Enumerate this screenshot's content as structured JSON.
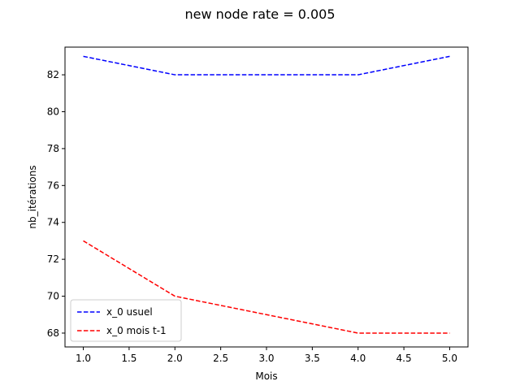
{
  "chart_data": {
    "type": "line",
    "title": "new node rate = 0.005",
    "xlabel": "Mois",
    "ylabel": "nb_itérations",
    "x": [
      1.0,
      2.0,
      3.0,
      4.0,
      5.0
    ],
    "xlim": [
      0.8,
      5.2
    ],
    "ylim": [
      67.25,
      83.5
    ],
    "xticks": [
      1.0,
      1.5,
      2.0,
      2.5,
      3.0,
      3.5,
      4.0,
      4.5,
      5.0
    ],
    "xtick_labels": [
      "1.0",
      "1.5",
      "2.0",
      "2.5",
      "3.0",
      "3.5",
      "4.0",
      "4.5",
      "5.0"
    ],
    "yticks": [
      68,
      70,
      72,
      74,
      76,
      78,
      80,
      82
    ],
    "ytick_labels": [
      "68",
      "70",
      "72",
      "74",
      "76",
      "78",
      "80",
      "82"
    ],
    "grid": false,
    "legend_position": "lower-left",
    "series": [
      {
        "name": "x_0 usuel",
        "values": [
          83,
          82,
          82,
          82,
          83
        ],
        "color": "#0000ff",
        "style": "dashed"
      },
      {
        "name": "x_0 mois t-1",
        "values": [
          73,
          70,
          69,
          68,
          68
        ],
        "color": "#ff0000",
        "style": "dashed"
      }
    ]
  }
}
